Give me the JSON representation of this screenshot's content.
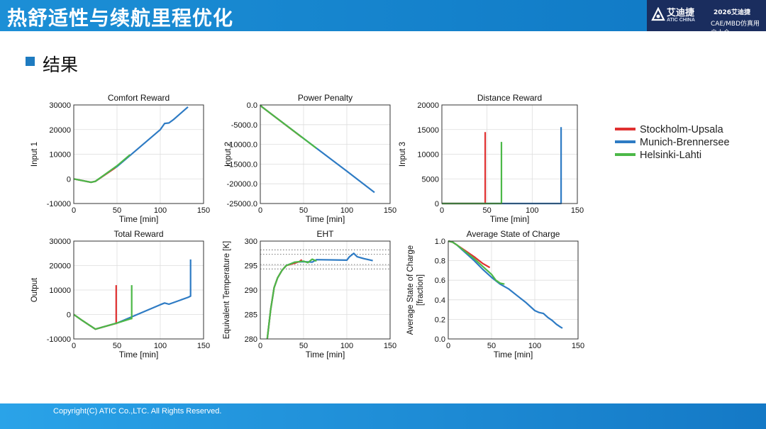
{
  "header": {
    "title": "热舒适性与续航里程优化"
  },
  "logo": {
    "name": "艾迪捷",
    "name_en": "ATIC CHINA",
    "year": "2026艾迪捷",
    "conference": "CAE/MBD仿真用户大会"
  },
  "section": {
    "title": "结果"
  },
  "footer": {
    "copyright": "Copyright(C) ATIC Co.,LTC. All Rights Reserved."
  },
  "colors": {
    "stockholm": "#e03030",
    "munich": "#2e7bc4",
    "helsinki": "#4cb848",
    "header": "#1a8ad3",
    "footer": "#1c8fd8"
  },
  "legend": [
    {
      "name": "Stockholm-Upsala",
      "color": "#e03030"
    },
    {
      "name": "Munich-Brennersee",
      "color": "#2e7bc4"
    },
    {
      "name": "Helsinki-Lahti",
      "color": "#4cb848"
    }
  ],
  "chart_data": [
    {
      "type": "line",
      "title": "Comfort Reward",
      "xlabel": "Time [min]",
      "ylabel": "Input 1",
      "xlim": [
        0,
        150
      ],
      "ylim": [
        -10000,
        30000
      ],
      "xticks": [
        0,
        50,
        100,
        150
      ],
      "yticks": [
        -10000,
        0,
        10000,
        20000,
        30000
      ],
      "grid": true,
      "series": [
        {
          "name": "Munich-Brennersee",
          "color": "#2e7bc4",
          "x": [
            0,
            10,
            20,
            25,
            50,
            100,
            105,
            110,
            115,
            132
          ],
          "y": [
            0,
            -700,
            -1400,
            -1000,
            5000,
            20000,
            22500,
            22700,
            24000,
            29200
          ]
        },
        {
          "name": "Stockholm-Upsala",
          "color": "#e03030",
          "x": [
            0,
            10,
            20,
            25,
            48
          ],
          "y": [
            0,
            -700,
            -1400,
            -1000,
            4500
          ]
        },
        {
          "name": "Helsinki-Lahti",
          "color": "#4cb848",
          "x": [
            0,
            10,
            20,
            25,
            50,
            65
          ],
          "y": [
            0,
            -700,
            -1400,
            -1000,
            5300,
            9800
          ]
        }
      ]
    },
    {
      "type": "line",
      "title": "Power Penalty",
      "xlabel": "Time [min]",
      "ylabel": "Input 2",
      "xlim": [
        0,
        150
      ],
      "ylim": [
        -25000,
        0
      ],
      "xticks": [
        0,
        50,
        100,
        150
      ],
      "yticks": [
        -25000,
        -20000,
        -15000,
        -10000,
        -5000,
        0
      ],
      "grid": true,
      "series": [
        {
          "name": "Munich-Brennersee",
          "color": "#2e7bc4",
          "x": [
            0,
            2,
            50,
            100,
            132
          ],
          "y": [
            0,
            -500,
            -8500,
            -16800,
            -22200
          ]
        },
        {
          "name": "Stockholm-Upsala",
          "color": "#e03030",
          "x": [
            0,
            2,
            48
          ],
          "y": [
            0,
            -500,
            -8200
          ]
        },
        {
          "name": "Helsinki-Lahti",
          "color": "#4cb848",
          "x": [
            0,
            2,
            50,
            65
          ],
          "y": [
            0,
            -500,
            -8500,
            -11000
          ]
        }
      ]
    },
    {
      "type": "line",
      "title": "Distance Reward",
      "xlabel": "Time [min]",
      "ylabel": "Input 3",
      "xlim": [
        0,
        150
      ],
      "ylim": [
        0,
        20000
      ],
      "xticks": [
        0,
        50,
        100,
        150
      ],
      "yticks": [
        0,
        5000,
        10000,
        15000,
        20000
      ],
      "grid": true,
      "series": [
        {
          "name": "Munich-Brennersee",
          "color": "#2e7bc4",
          "x": [
            0,
            132,
            132
          ],
          "y": [
            0,
            0,
            15500
          ]
        },
        {
          "name": "Stockholm-Upsala",
          "color": "#e03030",
          "x": [
            0,
            48,
            48
          ],
          "y": [
            0,
            0,
            14500
          ]
        },
        {
          "name": "Helsinki-Lahti",
          "color": "#4cb848",
          "x": [
            0,
            66,
            66
          ],
          "y": [
            0,
            0,
            12500
          ]
        }
      ]
    },
    {
      "type": "line",
      "title": "Total Reward",
      "xlabel": "Time [min]",
      "ylabel": "Output",
      "xlim": [
        0,
        150
      ],
      "ylim": [
        -10000,
        30000
      ],
      "xticks": [
        0,
        50,
        100,
        150
      ],
      "yticks": [
        -10000,
        0,
        10000,
        20000,
        30000
      ],
      "grid": true,
      "series": [
        {
          "name": "Munich-Brennersee",
          "color": "#2e7bc4",
          "x": [
            0,
            10,
            25,
            50,
            100,
            105,
            110,
            132,
            135,
            135
          ],
          "y": [
            0,
            -2500,
            -6000,
            -3500,
            4000,
            4700,
            4200,
            7000,
            7500,
            22500
          ]
        },
        {
          "name": "Stockholm-Upsala",
          "color": "#e03030",
          "x": [
            0,
            10,
            25,
            48,
            49,
            49
          ],
          "y": [
            0,
            -2500,
            -6000,
            -3700,
            -3700,
            12000
          ]
        },
        {
          "name": "Helsinki-Lahti",
          "color": "#4cb848",
          "x": [
            0,
            10,
            25,
            50,
            66,
            67,
            67
          ],
          "y": [
            0,
            -2500,
            -6000,
            -3500,
            -1700,
            -1700,
            12000
          ]
        }
      ]
    },
    {
      "type": "line",
      "title": "EHT",
      "xlabel": "Time [min]",
      "ylabel": "Equivalent Temperature [K]",
      "xlim": [
        0,
        150
      ],
      "ylim": [
        280,
        300
      ],
      "xticks": [
        0,
        50,
        100,
        150
      ],
      "yticks": [
        280,
        285,
        290,
        295,
        300
      ],
      "grid": true,
      "reference_lines": [
        298.2,
        297.3,
        295.2,
        294.3
      ],
      "series": [
        {
          "name": "Munich-Brennersee",
          "color": "#2e7bc4",
          "x": [
            8,
            12,
            16,
            20,
            25,
            30,
            40,
            50,
            60,
            65,
            100,
            103,
            108,
            112,
            120,
            130
          ],
          "y": [
            280,
            286,
            290.5,
            292.5,
            294,
            295,
            295.7,
            295.8,
            295.7,
            296.2,
            296.1,
            296.8,
            297.5,
            296.8,
            296.4,
            296
          ]
        },
        {
          "name": "Stockholm-Upsala",
          "color": "#e03030",
          "x": [
            8,
            12,
            16,
            20,
            25,
            30,
            40,
            45,
            48
          ],
          "y": [
            280,
            286,
            290.5,
            292.5,
            294,
            295,
            295.5,
            295.8,
            296.2
          ]
        },
        {
          "name": "Helsinki-Lahti",
          "color": "#4cb848",
          "x": [
            8,
            12,
            16,
            20,
            25,
            30,
            40,
            50,
            55,
            60,
            65
          ],
          "y": [
            280,
            286,
            290.5,
            292.5,
            294,
            295,
            295.7,
            295.9,
            295.6,
            296.3,
            295.9
          ]
        }
      ]
    },
    {
      "type": "line",
      "title": "Average State of Charge",
      "xlabel": "Time [min]",
      "ylabel": "Average State of Charge [fraction]",
      "xlim": [
        0,
        150
      ],
      "ylim": [
        0,
        1.0
      ],
      "xticks": [
        0,
        50,
        100,
        150
      ],
      "yticks": [
        0.0,
        0.2,
        0.4,
        0.6,
        0.8,
        1.0
      ],
      "grid": true,
      "series": [
        {
          "name": "Munich-Brennersee",
          "color": "#2e7bc4",
          "x": [
            0,
            5,
            10,
            20,
            30,
            40,
            50,
            60,
            70,
            80,
            90,
            100,
            105,
            110,
            115,
            120,
            125,
            130,
            132
          ],
          "y": [
            1.0,
            0.99,
            0.96,
            0.88,
            0.8,
            0.71,
            0.63,
            0.56,
            0.51,
            0.44,
            0.37,
            0.29,
            0.27,
            0.26,
            0.22,
            0.19,
            0.15,
            0.12,
            0.11
          ]
        },
        {
          "name": "Stockholm-Upsala",
          "color": "#e03030",
          "x": [
            0,
            5,
            10,
            20,
            30,
            40,
            48
          ],
          "y": [
            1.0,
            0.99,
            0.96,
            0.9,
            0.84,
            0.77,
            0.73
          ]
        },
        {
          "name": "Helsinki-Lahti",
          "color": "#4cb848",
          "x": [
            0,
            5,
            10,
            20,
            30,
            40,
            50,
            55,
            60,
            65
          ],
          "y": [
            1.0,
            0.99,
            0.96,
            0.89,
            0.82,
            0.74,
            0.66,
            0.6,
            0.57,
            0.56
          ]
        }
      ]
    }
  ]
}
